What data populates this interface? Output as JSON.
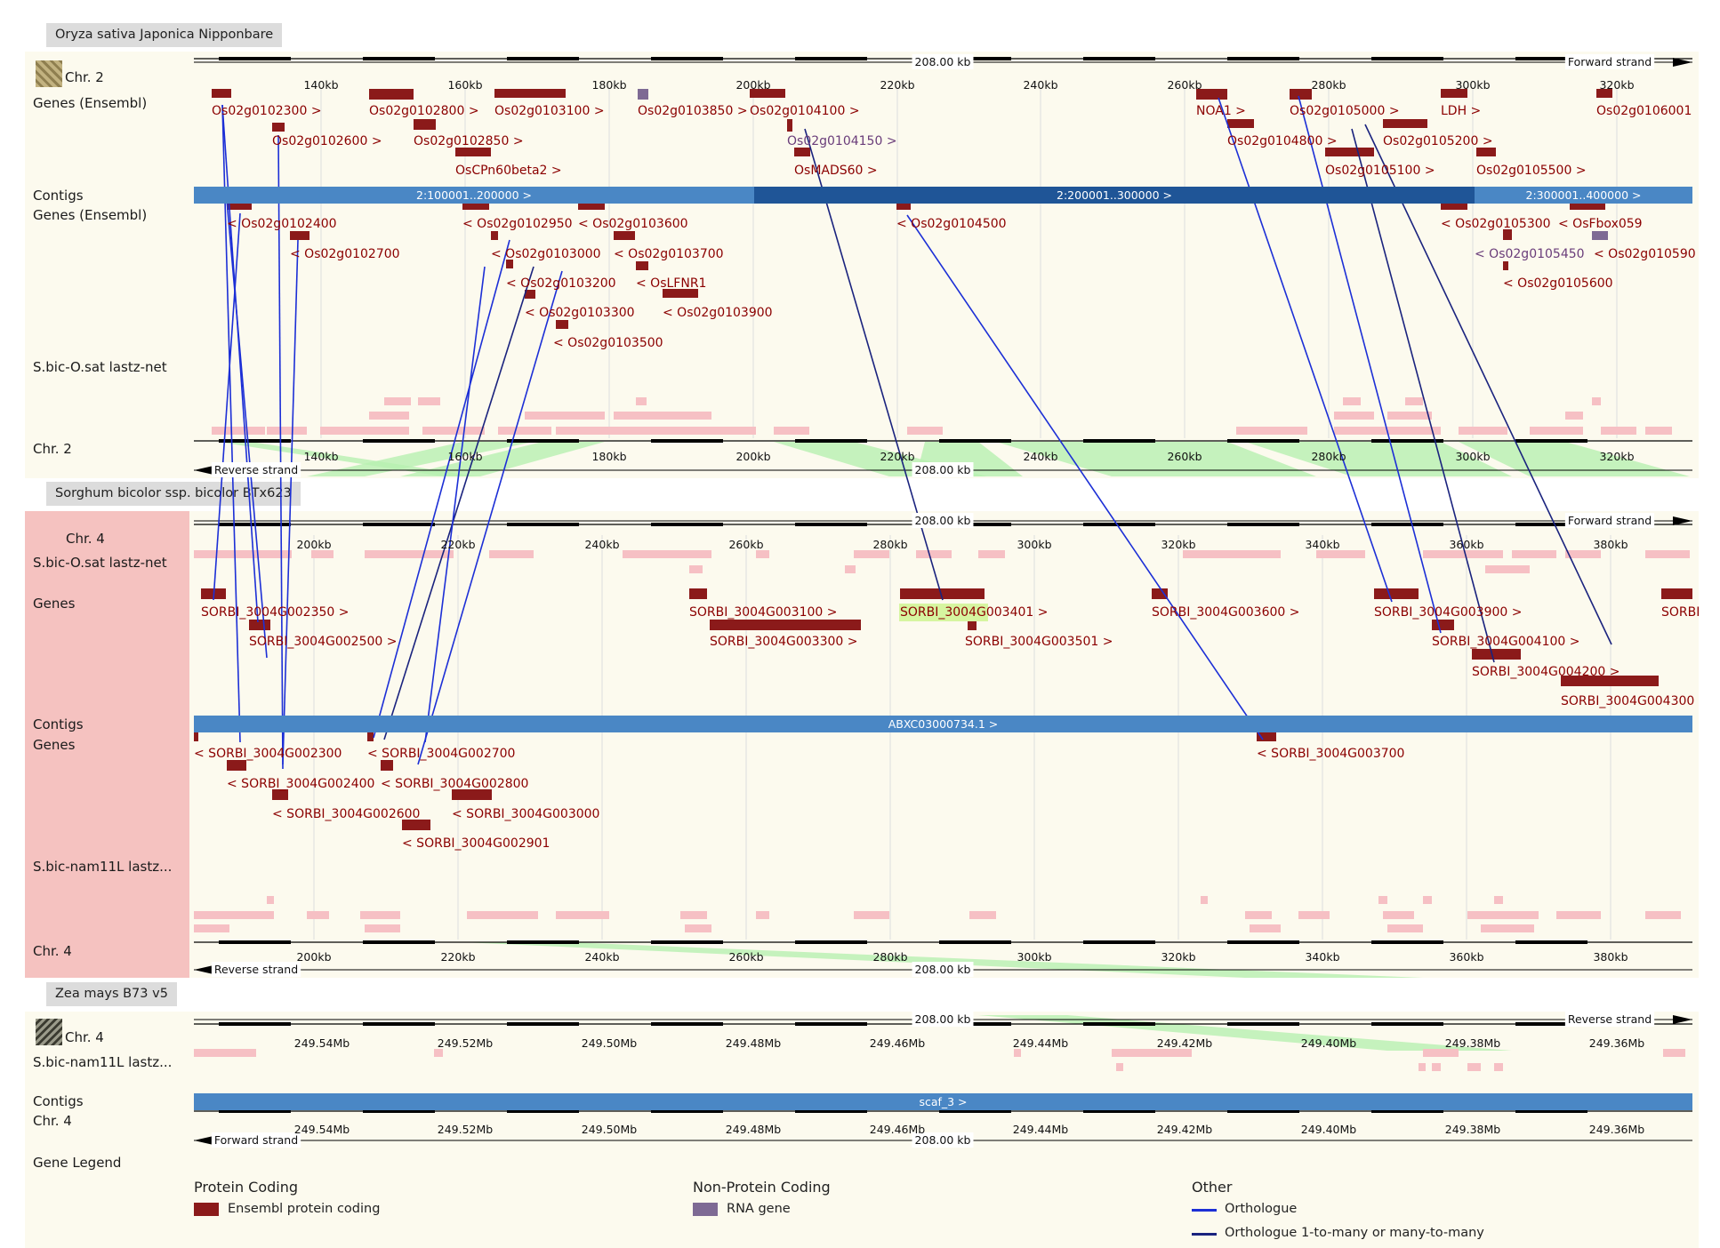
{
  "species": [
    {
      "name": "Oryza sativa Japonica Nipponbare"
    },
    {
      "name": "Sorghum bicolor ssp. bicolor BTx623"
    },
    {
      "name": "Zea mays B73 v5"
    }
  ],
  "track_labels": {
    "osat_chr": "Chr. 2",
    "osat_genes_fwd": "Genes (Ensembl)",
    "osat_contigs": "Contigs",
    "osat_genes_rev": "Genes (Ensembl)",
    "osat_lastz": "S.bic-O.sat lastz-net",
    "osat_chr_bottom": "Chr. 2",
    "sbic_chr": "Chr. 4",
    "sbic_lastz_top": "S.bic-O.sat lastz-net",
    "sbic_genes_fwd": "Genes",
    "sbic_contigs": "Contigs",
    "sbic_genes_rev": "Genes",
    "sbic_lastz_bottom": "S.bic-nam11L lastz...",
    "sbic_chr_bottom": "Chr. 4",
    "zmay_chr": "Chr. 4",
    "zmay_lastz": "S.bic-nam11L lastz...",
    "zmay_contigs": "Contigs",
    "zmay_chr_bottom": "Chr. 4"
  },
  "rulers": {
    "length": "208.00 kb",
    "forward": "Forward strand",
    "reverse": "Reverse strand"
  },
  "ticks": {
    "osat": [
      "140kb",
      "160kb",
      "180kb",
      "200kb",
      "220kb",
      "240kb",
      "260kb",
      "280kb",
      "300kb",
      "320kb"
    ],
    "sbic": [
      "200kb",
      "220kb",
      "240kb",
      "260kb",
      "280kb",
      "300kb",
      "320kb",
      "340kb",
      "360kb",
      "380kb"
    ],
    "zmay": [
      "249.54Mb",
      "249.52Mb",
      "249.50Mb",
      "249.48Mb",
      "249.46Mb",
      "249.44Mb",
      "249.42Mb",
      "249.40Mb",
      "249.38Mb",
      "249.36Mb"
    ]
  },
  "contigs": {
    "osat": [
      "2:100001..200000 >",
      "2:200001..300000 >",
      "2:300001..400000 >"
    ],
    "sbic": "ABXC03000734.1 >",
    "zmay": "scaf_3 >"
  },
  "osat_genes_fwd": [
    "Os02g0102300 >",
    "Os02g0102600 >",
    "Os02g0102800 >",
    "Os02g0102850 >",
    "OsCPn60beta2 >",
    "Os02g0103100 >",
    "Os02g0103850 >",
    "Os02g0104100 >",
    "Os02g0104150 >",
    "OsMADS60 >",
    "NOA1 >",
    "Os02g0104800 >",
    "Os02g0105000 >",
    "Os02g0105100 >",
    "Os02g0105200 >",
    "LDH >",
    "Os02g0105500 >",
    "Os02g0106001"
  ],
  "osat_genes_rev": [
    "< Os02g0102400",
    "< Os02g0102700",
    "< Os02g0102950",
    "< Os02g0103000",
    "< Os02g0103200",
    "< Os02g0103300",
    "< Os02g0103500",
    "< Os02g0103600",
    "< Os02g0103700",
    "< OsLFNR1",
    "< Os02g0103900",
    "< Os02g0104500",
    "< Os02g0105300",
    "< OsFbox059",
    "< Os02g0105450",
    "< Os02g010590",
    "< Os02g0105600"
  ],
  "sbic_genes_fwd": [
    "SORBI_3004G002350 >",
    "SORBI_3004G002500 >",
    "SORBI_3004G003100 >",
    "SORBI_3004G003300 >",
    "SORBI_3004G003401 >",
    "SORBI_3004G003501 >",
    "SORBI_3004G003600 >",
    "SORBI_3004G003900 >",
    "SORBI_3004G004100 >",
    "SORBI_3004G004200 >",
    "SORBI_3004G004300",
    "SORBI"
  ],
  "sbic_genes_rev": [
    "< SORBI_3004G002300",
    "< SORBI_3004G002400",
    "< SORBI_3004G002600",
    "< SORBI_3004G002700",
    "< SORBI_3004G002800",
    "< SORBI_3004G002901",
    "< SORBI_3004G003000",
    "< SORBI_3004G003700"
  ],
  "legend": {
    "title": "Gene Legend",
    "groups": [
      {
        "title": "Protein Coding",
        "item": "Ensembl protein coding",
        "color": "#8b1a1a"
      },
      {
        "title": "Non-Protein Coding",
        "item": "RNA gene",
        "color": "#7e6a94"
      },
      {
        "title": "Other",
        "items": [
          "Orthologue",
          "Orthologue 1-to-many or many-to-many"
        ],
        "colors": [
          "#1c2fd6",
          "#1a237e"
        ]
      }
    ]
  },
  "colors": {
    "gene": "#8b1a1a",
    "rna": "#7e6a94",
    "contig_light": "#4a87c5",
    "contig_dark": "#1f5597",
    "orthologue": "#1c2fd6",
    "orthologue_many": "#1a237e",
    "synteny": "#b6f0b0",
    "lastz": "#f6c0c4",
    "panel_bg": "#fcfaee",
    "highlight_bg": "#f5c2c0"
  }
}
